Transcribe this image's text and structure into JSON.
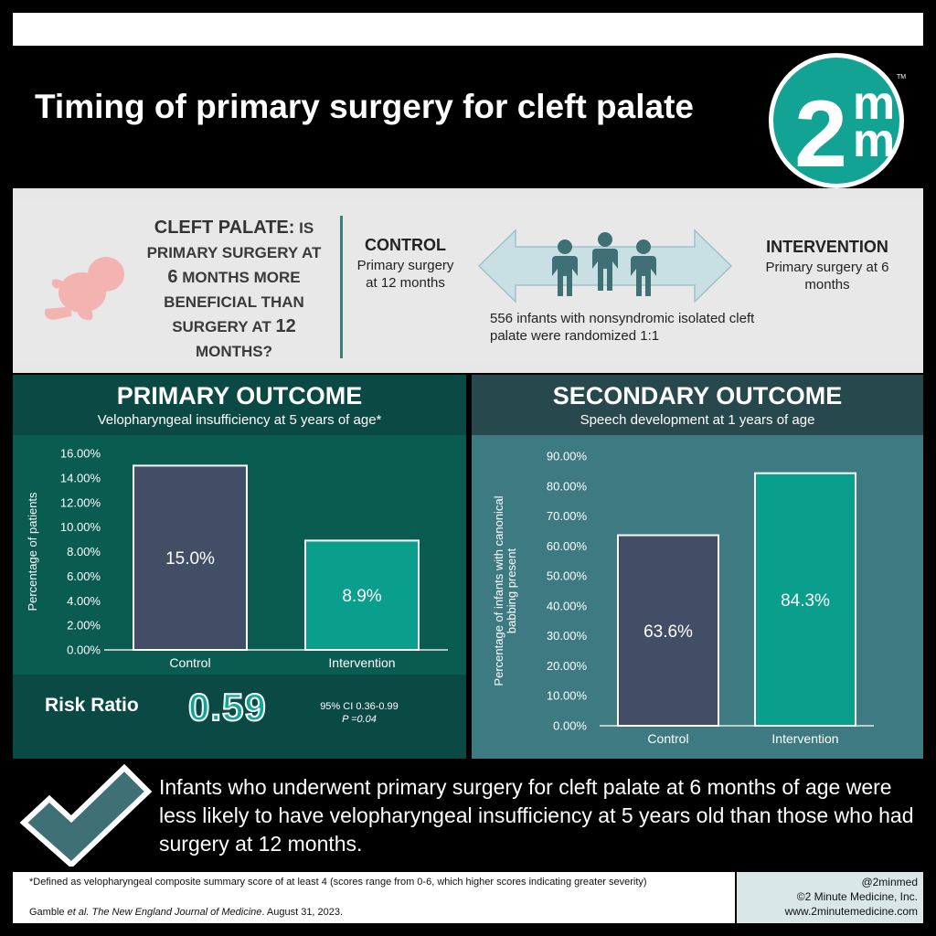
{
  "header": {
    "title": "Timing of primary surgery for cleft palate"
  },
  "logo": {
    "top": "m",
    "bottom": "m",
    "number": "2",
    "tm": "TM"
  },
  "question": {
    "line1_bold": "CLEFT PALATE:",
    "line1_rest": " IS",
    "line2": "PRIMARY SURGERY AT",
    "line3_num": "6",
    "line3_rest": " MONTHS MORE",
    "line4": "BENEFICIAL THAN",
    "line5_rest": "SURGERY AT ",
    "line5_num": "12",
    "line6": "MONTHS?"
  },
  "control": {
    "title": "CONTROL",
    "desc": "Primary surgery at 12 months"
  },
  "intervention": {
    "title": "INTERVENTION",
    "desc": "Primary surgery at 6 months"
  },
  "randomized": "556 infants with nonsyndromic isolated cleft palate were randomized 1:1",
  "primary": {
    "title": "PRIMARY OUTCOME",
    "subtitle": "Velopharyngeal insufficiency at 5 years of age*"
  },
  "secondary": {
    "title": "SECONDARY OUTCOME",
    "subtitle": "Speech development at 1 years of age"
  },
  "risk_ratio": {
    "label": "Risk Ratio",
    "value": "0.59",
    "ci": "95% CI 0.36-0.99",
    "p": "P =0.04"
  },
  "conclusion": "Infants who underwent primary surgery for cleft palate at 6 months of age were less likely to have velopharyngeal insufficiency at 5 years old than those who had surgery at 12 months.",
  "footnote": "*Defined as velopharyngeal composite summary score of at least 4 (scores range from 0-6, which higher scores indicating greater severity)",
  "citation": {
    "authors": "Gamble ",
    "etal": "et al.",
    "journal": " The New England Journal of Medicine",
    "date": ". August 31, 2023."
  },
  "credits": {
    "handle": "@2minmed",
    "company": "©2 Minute Medicine, Inc.",
    "url": "www.2minutemedicine.com"
  },
  "colors": {
    "control_bar": "#414e66",
    "intervention_bar": "#0a9e8c",
    "accent": "#0fa596"
  },
  "chart_data": [
    {
      "type": "bar",
      "categories": [
        "Control",
        "Intervention"
      ],
      "values": [
        15.0,
        8.9
      ],
      "value_labels": [
        "15.0%",
        "8.9%"
      ],
      "ylabel": "Percentage of patients",
      "ylim": [
        0,
        16
      ],
      "yticks": [
        "0.00%",
        "2.00%",
        "4.00%",
        "6.00%",
        "8.00%",
        "10.00%",
        "12.00%",
        "14.00%",
        "16.00%"
      ],
      "ytick_values": [
        0,
        2,
        4,
        6,
        8,
        10,
        12,
        14,
        16
      ]
    },
    {
      "type": "bar",
      "categories": [
        "Control",
        "Intervention"
      ],
      "values": [
        63.6,
        84.3
      ],
      "value_labels": [
        "63.6%",
        "84.3%"
      ],
      "ylabel": "Percentage of infants with canonical babbing present",
      "ylim": [
        0,
        90
      ],
      "yticks": [
        "0.00%",
        "10.00%",
        "20.00%",
        "30.00%",
        "40.00%",
        "50.00%",
        "60.00%",
        "70.00%",
        "80.00%",
        "90.00%"
      ],
      "ytick_values": [
        0,
        10,
        20,
        30,
        40,
        50,
        60,
        70,
        80,
        90
      ]
    }
  ]
}
